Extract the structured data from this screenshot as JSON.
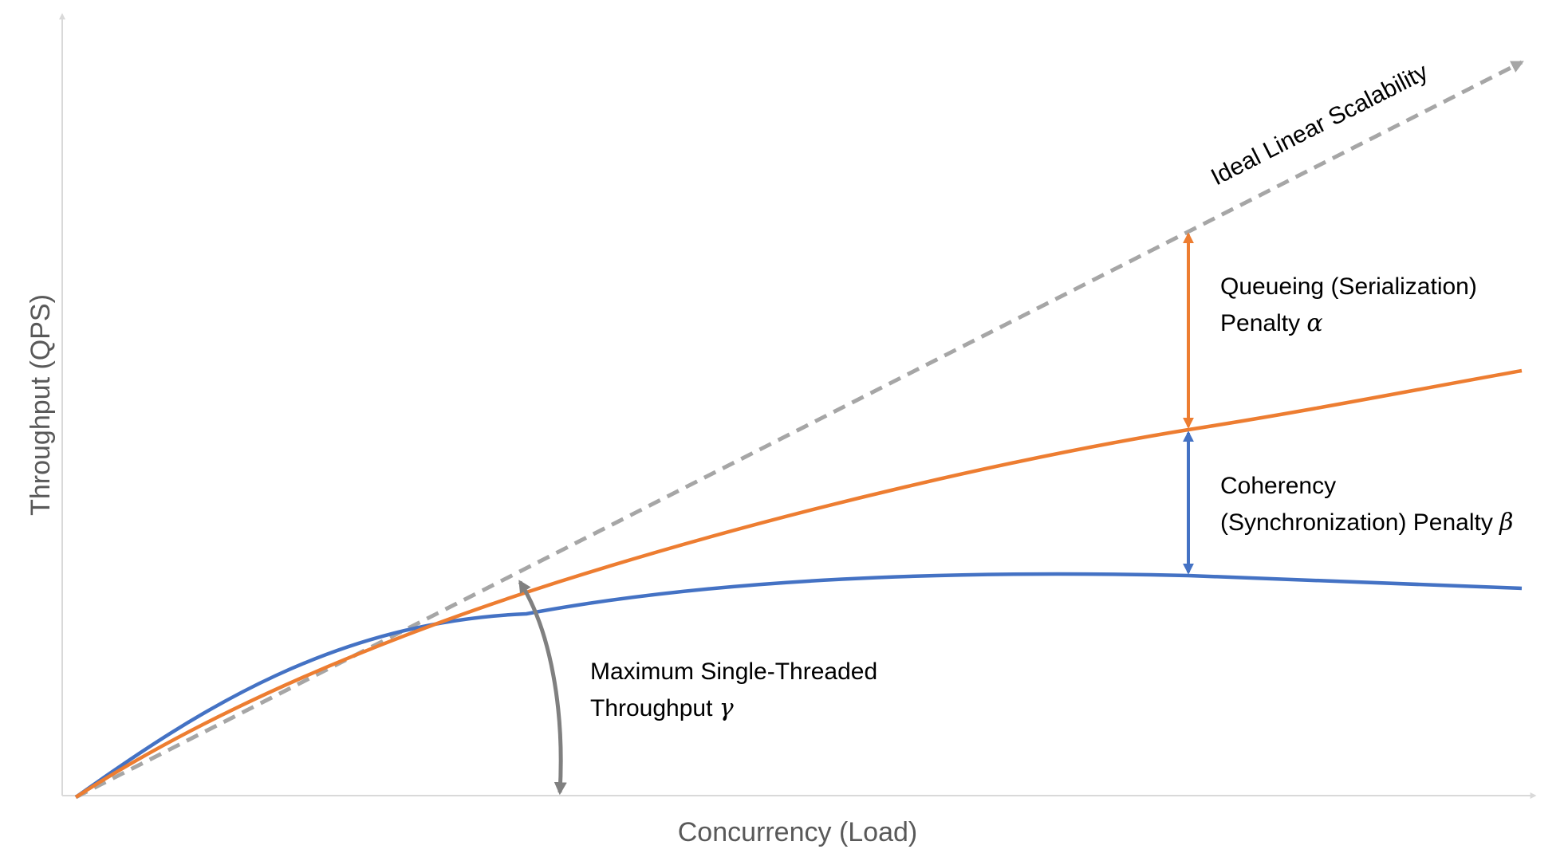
{
  "axes": {
    "x_label": "Concurrency (Load)",
    "y_label": "Throughput (QPS)"
  },
  "ideal_line": {
    "label": "Ideal Linear Scalability",
    "color": "#a6a6a6"
  },
  "curves": {
    "queueing_curve_color": "#ed7d31",
    "coherency_curve_color": "#4472c4"
  },
  "annotations": {
    "queueing": {
      "line1": "Queueing (Serialization)",
      "line2": "Penalty ",
      "symbol": "α"
    },
    "coherency": {
      "line1": "Coherency",
      "line2": "(Synchronization) Penalty ",
      "symbol": "β"
    },
    "single_threaded": {
      "line1": "Maximum Single-Threaded",
      "line2": "Throughput ",
      "symbol": "γ"
    }
  }
}
